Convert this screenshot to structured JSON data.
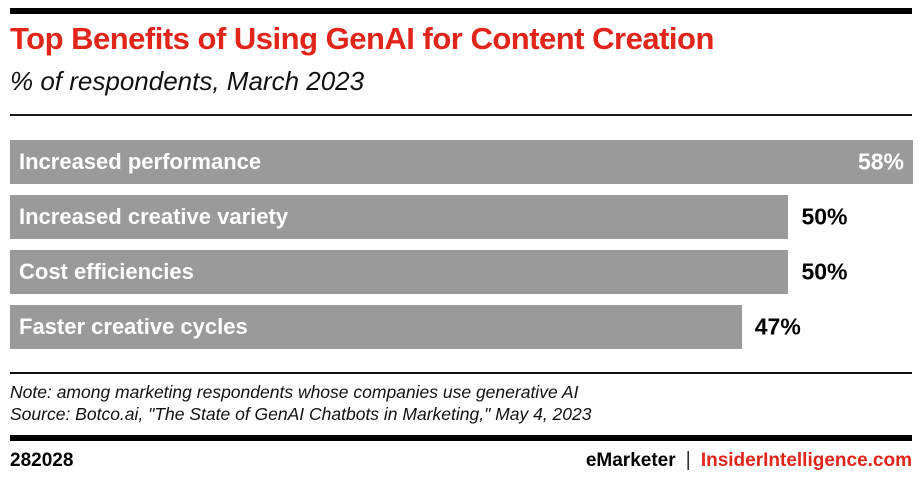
{
  "header": {
    "title": "Top Benefits of Using GenAI for Content Creation",
    "subtitle": "% of respondents, March 2023"
  },
  "chart_data": {
    "type": "bar",
    "orientation": "horizontal",
    "categories": [
      "Increased performance",
      "Increased creative variety",
      "Cost efficiencies",
      "Faster creative cycles"
    ],
    "values": [
      58,
      50,
      50,
      47
    ],
    "value_labels": [
      "58%",
      "50%",
      "50%",
      "47%"
    ],
    "value_inside_bar": [
      true,
      false,
      false,
      false
    ],
    "title": "Top Benefits of Using GenAI for Content Creation",
    "subtitle": "% of respondents, March 2023",
    "xlabel": "",
    "ylabel": "",
    "xlim": [
      0,
      58
    ],
    "grid": false,
    "legend": "none",
    "bar_color": "#9a9a9a"
  },
  "footnotes": {
    "note": "Note: among marketing respondents whose companies use generative AI",
    "source": "Source: Botco.ai, \"The State of GenAI Chatbots in Marketing,\" May 4, 2023"
  },
  "footer": {
    "chart_id": "282028",
    "brand": "eMarketer",
    "separator": "|",
    "site": "InsiderIntelligence.com"
  },
  "colors": {
    "accent_red": "#e1251b",
    "bar_gray": "#9a9a9a",
    "rule_black": "#000000"
  }
}
